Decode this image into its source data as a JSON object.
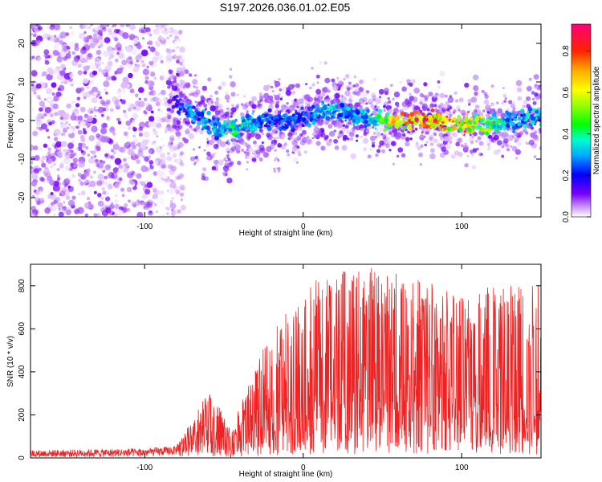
{
  "title": "S197.2026.036.01.02.E05",
  "colors": {
    "snr_line": "#ee2222",
    "frame": "#000000"
  },
  "chart_data": [
    {
      "type": "heatmap",
      "name": "spectrogram",
      "xlabel": "Height of straight line (km)",
      "ylabel": "Frequency (Hz)",
      "xlim": [
        -172,
        150
      ],
      "ylim": [
        -25,
        25
      ],
      "xticks": [
        -100,
        0,
        100
      ],
      "yticks": [
        -20,
        -10,
        0,
        10,
        20
      ],
      "colorbar": {
        "label": "Normalized spectral amplitude",
        "range": [
          0.0,
          0.93
        ],
        "ticks": [
          0.0,
          0.2,
          0.4,
          0.6,
          0.8
        ],
        "tick_labels": [
          "0.0",
          "0.2",
          "0.4",
          "0.6",
          "0.8"
        ]
      },
      "ridge": {
        "description": "frequency track of peak amplitude vs height",
        "x": [
          -85,
          -75,
          -65,
          -55,
          -45,
          -35,
          -25,
          -15,
          -5,
          5,
          15,
          25,
          35,
          45,
          55,
          65,
          75,
          85,
          95,
          105,
          115,
          125,
          135,
          145
        ],
        "y": [
          6,
          3,
          0,
          -2,
          -2,
          -1,
          0,
          0,
          0,
          1,
          3,
          2,
          1,
          0,
          0,
          0,
          0,
          0,
          -1,
          -1,
          -1,
          -1,
          0,
          1
        ],
        "amplitude": [
          0.15,
          0.3,
          0.35,
          0.35,
          0.45,
          0.4,
          0.3,
          0.3,
          0.3,
          0.3,
          0.4,
          0.35,
          0.35,
          0.45,
          0.7,
          0.8,
          0.9,
          0.85,
          0.8,
          0.75,
          0.6,
          0.4,
          0.35,
          0.4
        ]
      },
      "noise_region": {
        "x_range": [
          -172,
          -85
        ],
        "y_range": [
          -25,
          25
        ],
        "amplitude_range": [
          0.0,
          0.12
        ]
      }
    },
    {
      "type": "line",
      "name": "snr",
      "xlabel": "Height of straight line (km)",
      "ylabel": "SNR (10 * v/v)",
      "xlim": [
        -172,
        150
      ],
      "ylim": [
        0,
        900
      ],
      "xticks": [
        -100,
        0,
        100
      ],
      "yticks": [
        0,
        200,
        400,
        600,
        800
      ],
      "envelope": {
        "description": "approximate noisy SNR envelope vs height",
        "x": [
          -172,
          -140,
          -100,
          -80,
          -72,
          -60,
          -55,
          -45,
          -40,
          -30,
          -20,
          -10,
          0,
          20,
          40,
          60,
          80,
          100,
          120,
          140,
          150
        ],
        "mean": [
          20,
          22,
          25,
          35,
          80,
          180,
          150,
          60,
          100,
          170,
          200,
          240,
          300,
          330,
          350,
          340,
          330,
          300,
          290,
          300,
          300
        ],
        "max": [
          40,
          45,
          50,
          60,
          150,
          310,
          270,
          120,
          240,
          420,
          600,
          700,
          820,
          860,
          890,
          870,
          820,
          780,
          830,
          880,
          850
        ]
      }
    }
  ]
}
